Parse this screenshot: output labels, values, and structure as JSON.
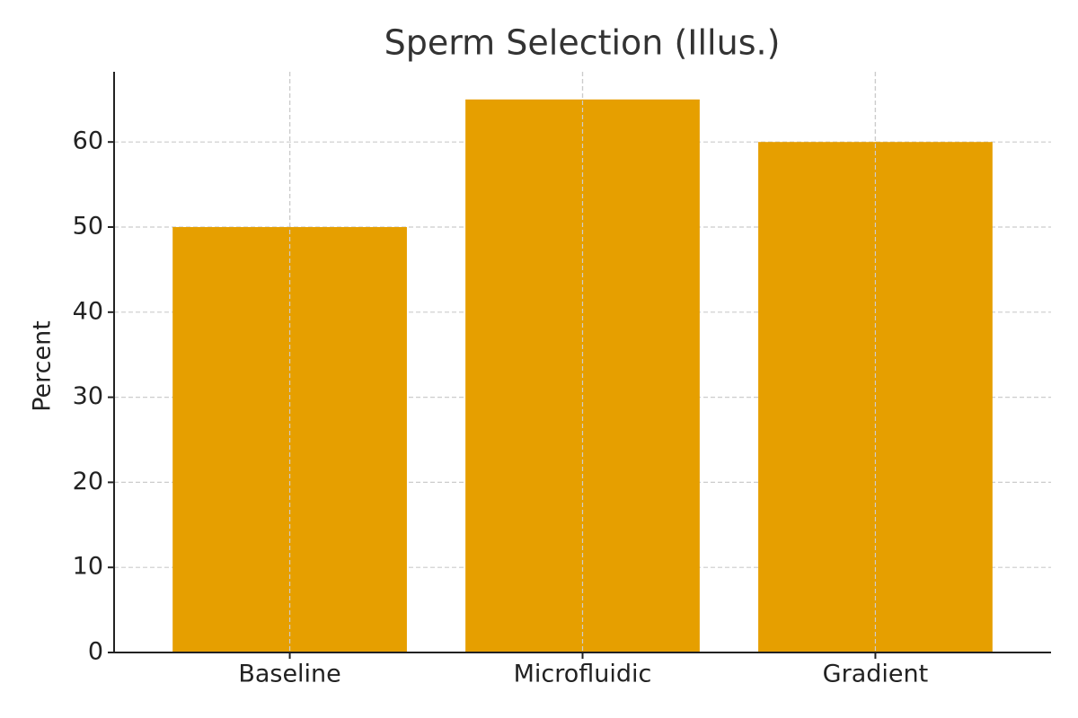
{
  "chart_data": {
    "type": "bar",
    "title": "Sperm Selection (Illus.)",
    "y_label": "Percent",
    "categories": [
      "Baseline",
      "Microfluidic",
      "Gradient"
    ],
    "values": [
      50,
      65,
      60
    ],
    "color": "#e69f00",
    "ylim": [
      0,
      68.25
    ],
    "yticks": [
      0,
      10,
      20,
      30,
      40,
      50,
      60
    ],
    "grid": true
  }
}
